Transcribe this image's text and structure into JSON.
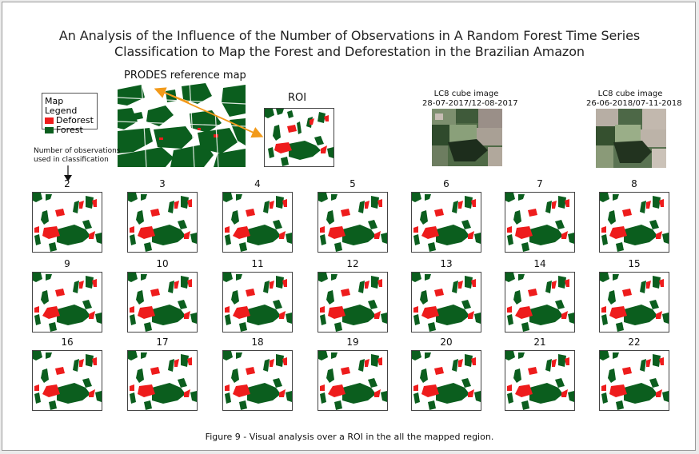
{
  "title_line1": "An Analysis of the Influence of the Number of Observations in A Random Forest Time Series",
  "title_line2": "Classification to Map the Forest and Deforestation in the Brazilian Amazon",
  "prodes_label": "PRODES reference map",
  "roi_label": "ROI",
  "lc8_image_1": {
    "line1": "LC8 cube image",
    "line2": "28-07-2017/12-08-2017"
  },
  "lc8_image_2": {
    "line1": "LC8 cube image",
    "line2": "26-06-2018/07-11-2018"
  },
  "legend": {
    "title": "Map Legend",
    "items": [
      {
        "label": "Deforest",
        "color": "#ee1c1c"
      },
      {
        "label": "Forest",
        "color": "#0b5e1e"
      }
    ]
  },
  "observations_label_line1": "Number of observations",
  "observations_label_line2": "used in classification",
  "observation_counts": [
    "2",
    "3",
    "4",
    "5",
    "6",
    "7",
    "8",
    "9",
    "10",
    "11",
    "12",
    "13",
    "14",
    "15",
    "16",
    "17",
    "18",
    "19",
    "20",
    "21",
    "22"
  ],
  "colors": {
    "forest": "#0b5e1e",
    "deforest": "#ee1c1c",
    "arrow": "#f29a1a"
  },
  "caption": "Figure 9 - Visual analysis over a ROI in the all the mapped region."
}
